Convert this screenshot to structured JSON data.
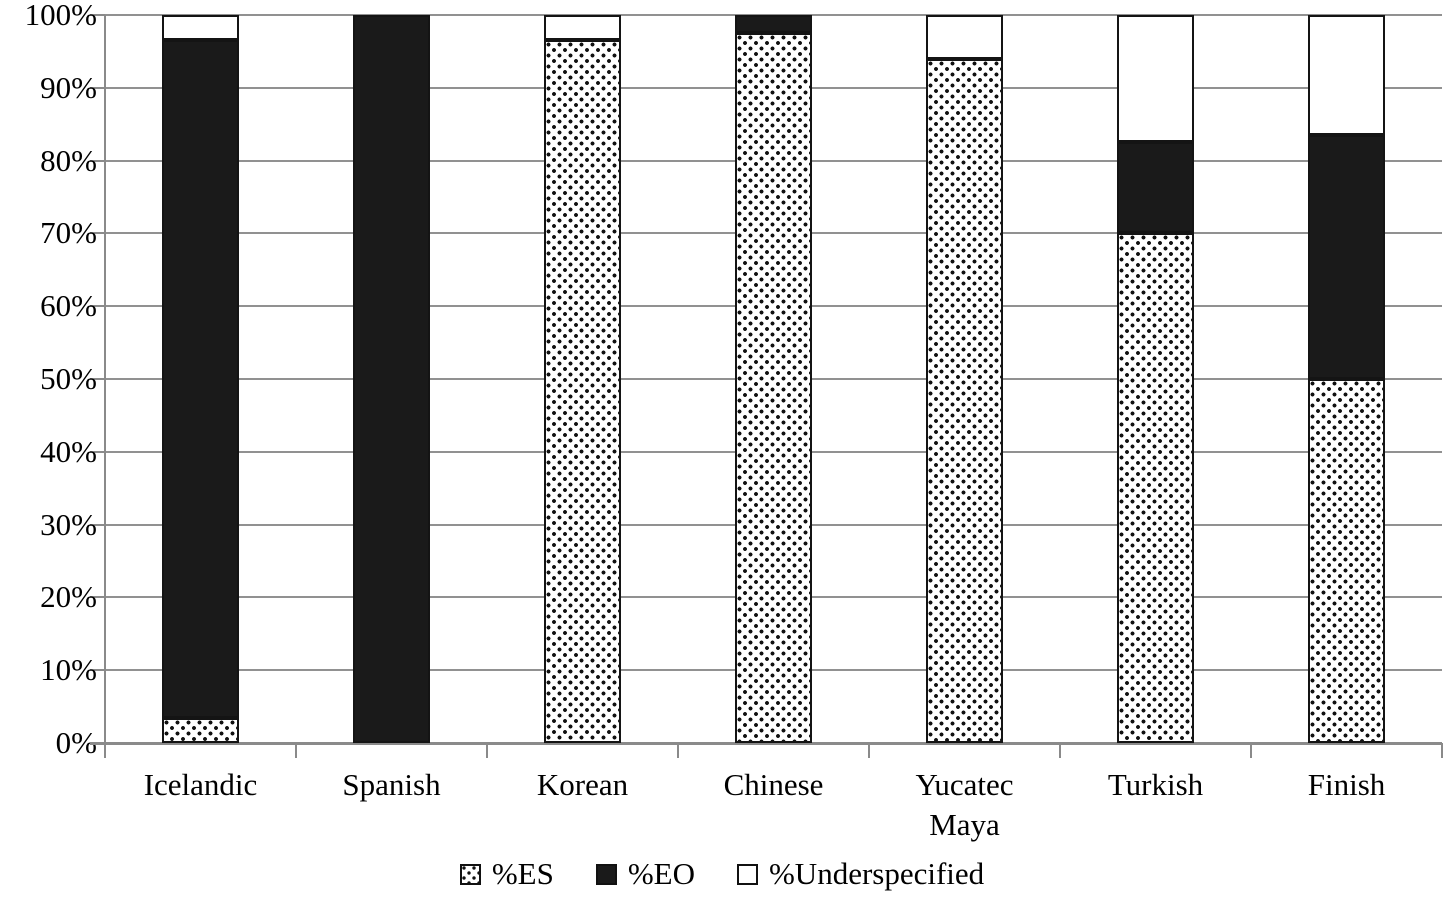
{
  "chart_data": {
    "type": "bar",
    "subtype": "stacked-100-percent",
    "categories": [
      "Icelandic",
      "Spanish",
      "Korean",
      "Chinese",
      "Yucatec Maya",
      "Turkish",
      "Finish"
    ],
    "series": [
      {
        "name": "%ES",
        "style": "dotted",
        "values": [
          3.5,
          0,
          96.5,
          97.5,
          94,
          70,
          50
        ]
      },
      {
        "name": "%EO",
        "style": "solid",
        "values": [
          93,
          100,
          0,
          2.5,
          0,
          12.5,
          33.5
        ]
      },
      {
        "name": "%Underspecified",
        "style": "white",
        "values": [
          3.5,
          0,
          3.5,
          0,
          6,
          17.5,
          16.5
        ]
      }
    ],
    "title": "",
    "xlabel": "",
    "ylabel": "",
    "ylim": [
      0,
      100
    ],
    "y_tick_labels": [
      "0%",
      "10%",
      "20%",
      "30%",
      "40%",
      "50%",
      "60%",
      "70%",
      "80%",
      "90%",
      "100%"
    ],
    "grid": true,
    "legend_position": "bottom"
  },
  "colors": {
    "bar_black": "#1a1a1a",
    "segment_border": "#141414",
    "gridline": "#919191",
    "axis": "#8a8a8a",
    "text": "#000000",
    "background": "#ffffff"
  }
}
